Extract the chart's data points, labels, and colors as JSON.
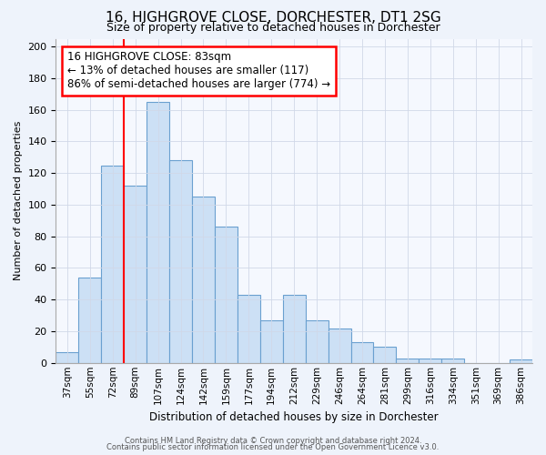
{
  "title": "16, HIGHGROVE CLOSE, DORCHESTER, DT1 2SG",
  "subtitle": "Size of property relative to detached houses in Dorchester",
  "xlabel": "Distribution of detached houses by size in Dorchester",
  "ylabel": "Number of detached properties",
  "bar_labels": [
    "37sqm",
    "55sqm",
    "72sqm",
    "89sqm",
    "107sqm",
    "124sqm",
    "142sqm",
    "159sqm",
    "177sqm",
    "194sqm",
    "212sqm",
    "229sqm",
    "246sqm",
    "264sqm",
    "281sqm",
    "299sqm",
    "316sqm",
    "334sqm",
    "351sqm",
    "369sqm",
    "386sqm"
  ],
  "bar_heights": [
    7,
    54,
    125,
    112,
    165,
    128,
    105,
    86,
    43,
    27,
    43,
    27,
    22,
    13,
    10,
    3,
    3,
    3,
    0,
    0,
    2
  ],
  "bar_color": "#cce0f5",
  "bar_edge_color": "#6aa0d0",
  "vline_x": 3.0,
  "vline_color": "red",
  "annotation_text": "16 HIGHGROVE CLOSE: 83sqm\n← 13% of detached houses are smaller (117)\n86% of semi-detached houses are larger (774) →",
  "annotation_box_color": "white",
  "annotation_box_edge": "red",
  "ylim": [
    0,
    205
  ],
  "yticks": [
    0,
    20,
    40,
    60,
    80,
    100,
    120,
    140,
    160,
    180,
    200
  ],
  "footer1": "Contains HM Land Registry data © Crown copyright and database right 2024.",
  "footer2": "Contains public sector information licensed under the Open Government Licence v3.0.",
  "bg_color": "#eef3fb",
  "plot_bg_color": "#f5f8fe",
  "grid_color": "#d0d8e8"
}
